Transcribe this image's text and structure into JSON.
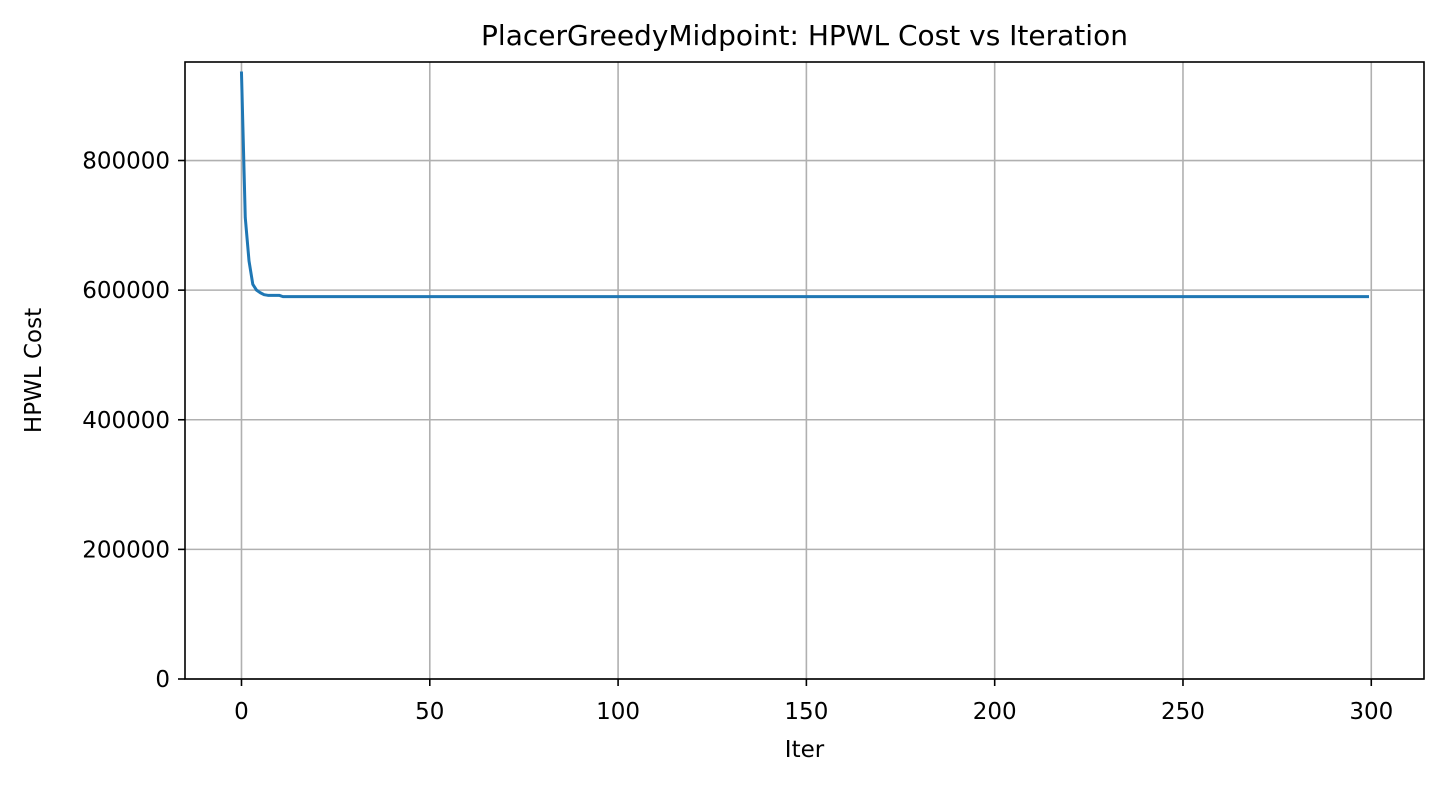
{
  "chart_data": {
    "type": "line",
    "title": "PlacerGreedyMidpoint: HPWL Cost vs Iteration",
    "xlabel": "Iter",
    "ylabel": "HPWL Cost",
    "xlim": [
      -15,
      314
    ],
    "ylim": [
      0,
      952000
    ],
    "grid": true,
    "line_color": "#1f77b4",
    "grid_color": "#b0b0b0",
    "x_ticks": [
      0,
      50,
      100,
      150,
      200,
      250,
      300
    ],
    "y_ticks": [
      0,
      200000,
      400000,
      600000,
      800000
    ],
    "x_tick_labels": [
      "0",
      "50",
      "100",
      "150",
      "200",
      "250",
      "300"
    ],
    "y_tick_labels": [
      "0",
      "200000",
      "400000",
      "600000",
      "800000"
    ],
    "series": [
      {
        "x": [
          0,
          1,
          2,
          3,
          4,
          5,
          6,
          7,
          8,
          9,
          10,
          11,
          12,
          15,
          20,
          50,
          100,
          150,
          200,
          250,
          299
        ],
        "values": [
          935000,
          712000,
          645000,
          609000,
          600000,
          596000,
          593000,
          592000,
          592000,
          592000,
          592000,
          590000,
          590000,
          590000,
          590000,
          590000,
          590000,
          590000,
          590000,
          590000,
          590000
        ]
      }
    ]
  }
}
